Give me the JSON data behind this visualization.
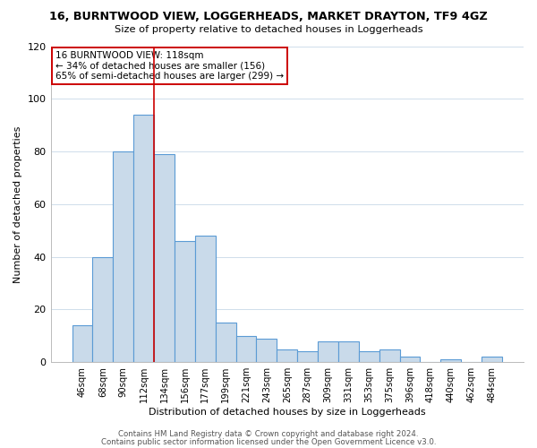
{
  "title": "16, BURNTWOOD VIEW, LOGGERHEADS, MARKET DRAYTON, TF9 4GZ",
  "subtitle": "Size of property relative to detached houses in Loggerheads",
  "xlabel": "Distribution of detached houses by size in Loggerheads",
  "ylabel": "Number of detached properties",
  "bar_labels": [
    "46sqm",
    "68sqm",
    "90sqm",
    "112sqm",
    "134sqm",
    "156sqm",
    "177sqm",
    "199sqm",
    "221sqm",
    "243sqm",
    "265sqm",
    "287sqm",
    "309sqm",
    "331sqm",
    "353sqm",
    "375sqm",
    "396sqm",
    "418sqm",
    "440sqm",
    "462sqm",
    "484sqm"
  ],
  "bar_values": [
    14,
    40,
    80,
    94,
    79,
    46,
    48,
    15,
    10,
    9,
    5,
    4,
    8,
    8,
    4,
    5,
    2,
    0,
    1,
    0,
    2
  ],
  "bar_color": "#c9daea",
  "bar_edge_color": "#5b9bd5",
  "ylim": [
    0,
    120
  ],
  "yticks": [
    0,
    20,
    40,
    60,
    80,
    100,
    120
  ],
  "vline_color": "#cc0000",
  "vline_index": 3.5,
  "annotation_line1": "16 BURNTWOOD VIEW: 118sqm",
  "annotation_line2": "← 34% of detached houses are smaller (156)",
  "annotation_line3": "65% of semi-detached houses are larger (299) →",
  "footer1": "Contains HM Land Registry data © Crown copyright and database right 2024.",
  "footer2": "Contains public sector information licensed under the Open Government Licence v3.0.",
  "bg_color": "#ffffff",
  "grid_color": "#c8d8e8"
}
